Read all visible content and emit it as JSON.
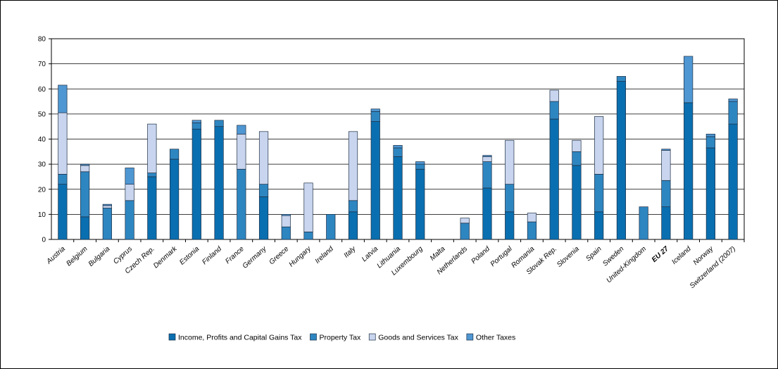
{
  "chart_data": {
    "type": "bar",
    "stacked": true,
    "ylim": [
      0,
      80
    ],
    "yticks": [
      0,
      10,
      20,
      30,
      40,
      50,
      60,
      70,
      80
    ],
    "grid": true,
    "legend_position": "bottom",
    "categories": [
      "Austria",
      "Belgium",
      "Bulgaria",
      "Cyprus",
      "Czech Rep.",
      "Denmark",
      "Estonia",
      "Finland",
      "France",
      "Germany",
      "Greece",
      "Hungary",
      "Ireland",
      "Italy",
      "Latvia",
      "Lithuania",
      "Luxembourg",
      "Malta",
      "Netherlands",
      "Poland",
      "Portugal",
      "Romania",
      "Slovak Rep.",
      "Slovenia",
      "Spain",
      "Sweden",
      "United-Kingdom",
      "EU 27",
      "Iceland",
      "Norway",
      "Switzerland (2007)"
    ],
    "bold_categories": [
      "EU 27"
    ],
    "series": [
      {
        "name": "Income, Profits and Capital Gains Tax",
        "color": "#0a6fb0",
        "values": [
          22,
          9,
          0,
          0,
          25,
          32,
          44,
          45,
          0,
          17,
          0,
          0,
          0,
          11,
          47,
          33,
          28,
          0,
          0,
          20.5,
          11,
          0,
          48,
          29.5,
          11,
          63,
          0,
          13,
          54.5,
          36.5,
          46
        ]
      },
      {
        "name": "Property Tax",
        "color": "#2e86c1",
        "values": [
          4,
          18,
          12.5,
          15.5,
          1.5,
          4,
          2.5,
          2.5,
          28,
          5,
          5,
          3,
          10,
          4.5,
          4,
          3.5,
          2,
          0,
          6.5,
          10.5,
          11,
          7,
          7,
          5.5,
          15,
          2,
          13,
          10.5,
          0,
          4.5,
          9
        ]
      },
      {
        "name": "Goods and Services Tax",
        "color": "#c9d5ee",
        "values": [
          24.5,
          2.5,
          1,
          6.5,
          19.5,
          0,
          0,
          0,
          14,
          21,
          4.5,
          19.5,
          0,
          27.5,
          0,
          0,
          0,
          0,
          2,
          2,
          17.5,
          3.5,
          4.5,
          4.5,
          23,
          0,
          0,
          12,
          0,
          0,
          0
        ]
      },
      {
        "name": "Other Taxes",
        "color": "#4f97d3",
        "values": [
          11,
          0.5,
          0.5,
          6.5,
          0,
          0,
          1,
          0,
          3.5,
          0,
          0.5,
          0,
          0,
          0,
          1,
          1,
          1,
          0,
          0,
          0.5,
          0,
          0,
          0,
          0,
          0,
          0,
          0,
          0.5,
          18.5,
          1,
          1
        ]
      }
    ]
  }
}
